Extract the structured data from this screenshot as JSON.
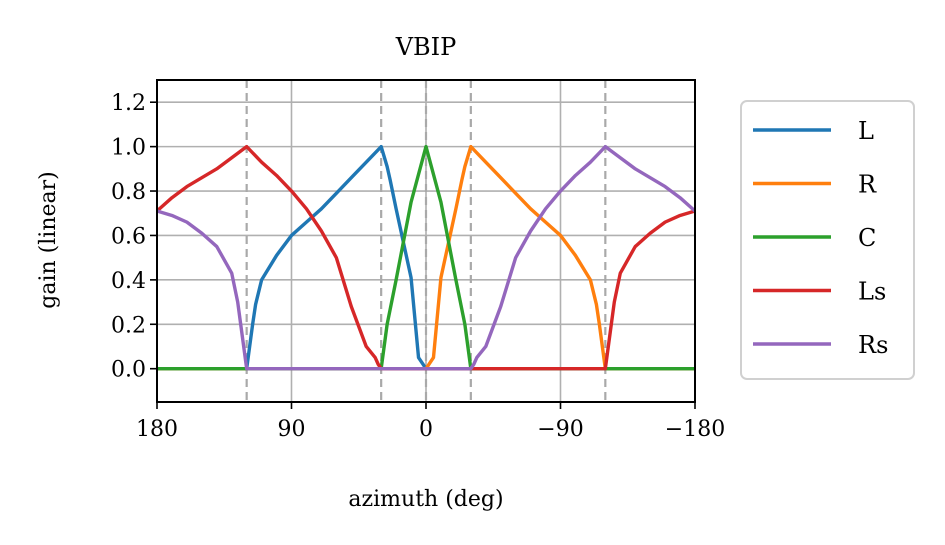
{
  "chart_data": {
    "type": "line",
    "title": "VBIP",
    "xlabel": "azimuth (deg)",
    "ylabel": "gain (linear)",
    "xlim": [
      180,
      -180
    ],
    "ylim": [
      -0.15,
      1.3
    ],
    "xticks": [
      180,
      90,
      0,
      -90,
      -180
    ],
    "xtick_labels": [
      "180",
      "90",
      "0",
      "−90",
      "−180"
    ],
    "yticks": [
      0.0,
      0.2,
      0.4,
      0.6,
      0.8,
      1.0,
      1.2
    ],
    "ytick_labels": [
      "0.0",
      "0.2",
      "0.4",
      "0.6",
      "0.8",
      "1.0",
      "1.2"
    ],
    "grid": true,
    "speaker_azimuths": [
      120,
      30,
      0,
      -30,
      -120
    ],
    "legend": "outside-right",
    "series": [
      {
        "name": "L",
        "color": "#1f77b4",
        "x": [
          180,
          120,
          116,
          114,
          110,
          100,
          90,
          80,
          70,
          60,
          50,
          40,
          30,
          26,
          24,
          20,
          10,
          5,
          0,
          -180
        ],
        "y": [
          0,
          0,
          0.2,
          0.29,
          0.4,
          0.51,
          0.6,
          0.66,
          0.72,
          0.79,
          0.86,
          0.93,
          1.0,
          0.91,
          0.85,
          0.72,
          0.41,
          0.05,
          0,
          0
        ]
      },
      {
        "name": "R",
        "color": "#ff7f0e",
        "x": [
          180,
          0,
          -5,
          -10,
          -20,
          -24,
          -26,
          -30,
          -40,
          -50,
          -60,
          -70,
          -80,
          -90,
          -100,
          -110,
          -114,
          -116,
          -120,
          -180
        ],
        "y": [
          0,
          0,
          0.05,
          0.41,
          0.72,
          0.85,
          0.91,
          1.0,
          0.93,
          0.86,
          0.79,
          0.72,
          0.66,
          0.6,
          0.51,
          0.4,
          0.29,
          0.2,
          0,
          0
        ]
      },
      {
        "name": "C",
        "color": "#2ca02c",
        "x": [
          180,
          30,
          26,
          20,
          10,
          0,
          -10,
          -20,
          -26,
          -30,
          -180
        ],
        "y": [
          0,
          0,
          0.2,
          0.4,
          0.75,
          1.0,
          0.75,
          0.4,
          0.2,
          0,
          0
        ]
      },
      {
        "name": "Ls",
        "color": "#d62728",
        "x": [
          180,
          170,
          160,
          150,
          140,
          130,
          120,
          110,
          100,
          90,
          80,
          70,
          60,
          50,
          40,
          34,
          32,
          30,
          -120,
          -124,
          -126,
          -130,
          -140,
          -150,
          -160,
          -170,
          -180
        ],
        "y": [
          0.71,
          0.77,
          0.82,
          0.86,
          0.9,
          0.95,
          1.0,
          0.93,
          0.87,
          0.8,
          0.72,
          0.62,
          0.5,
          0.28,
          0.1,
          0.05,
          0.02,
          0,
          0,
          0.2,
          0.3,
          0.43,
          0.55,
          0.61,
          0.66,
          0.69,
          0.71
        ]
      },
      {
        "name": "Rs",
        "color": "#9467bd",
        "x": [
          180,
          170,
          160,
          150,
          140,
          130,
          126,
          124,
          120,
          -30,
          -32,
          -34,
          -40,
          -50,
          -60,
          -70,
          -80,
          -90,
          -100,
          -110,
          -120,
          -130,
          -140,
          -150,
          -160,
          -170,
          -180
        ],
        "y": [
          0.71,
          0.69,
          0.66,
          0.61,
          0.55,
          0.43,
          0.3,
          0.2,
          0,
          0,
          0.02,
          0.05,
          0.1,
          0.28,
          0.5,
          0.62,
          0.72,
          0.8,
          0.87,
          0.93,
          1.0,
          0.95,
          0.9,
          0.86,
          0.82,
          0.77,
          0.71
        ]
      }
    ]
  }
}
